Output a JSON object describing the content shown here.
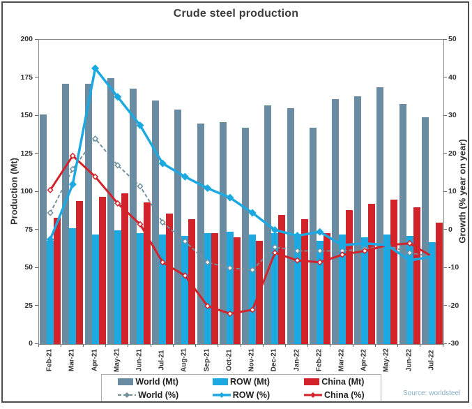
{
  "title": "Crude steel production",
  "source_note": "Source: worldsteel",
  "colors": {
    "world_bar": "#6a8ca2",
    "row_bar": "#1ca9e1",
    "china_bar": "#d2232a",
    "world_line": "#73909e",
    "row_line": "#1ca9e1",
    "china_line": "#d2232a",
    "title_text": "#3c3c3c",
    "axis_text": "#333333",
    "source_text": "#85aec7"
  },
  "chart_data": {
    "type": "bar+line",
    "title": "Crude steel production",
    "grid": false,
    "legend_position": "bottom",
    "categories": [
      "Feb-21",
      "Mar-21",
      "Apr-21",
      "May-21",
      "Jun-21",
      "Jul-21",
      "Aug-21",
      "Sep-21",
      "Oct-21",
      "Nov-21",
      "Dec-21",
      "Jan-22",
      "Feb-22",
      "Mar-22",
      "Apr-22",
      "May-22",
      "Jun-22",
      "Jul-22"
    ],
    "left_axis": {
      "label": "Production (Mt)",
      "min": 0,
      "max": 200,
      "step": 25,
      "ticks": [
        "0",
        "25",
        "50",
        "75",
        "100",
        "125",
        "150",
        "175",
        "200"
      ]
    },
    "right_axis": {
      "label": "Growth (% year on year)",
      "min": -30,
      "max": 50,
      "step": 10,
      "ticks": [
        "-30",
        "-20",
        "-10",
        "0",
        "10",
        "20",
        "30",
        "40",
        "50"
      ]
    },
    "bar_series": [
      {
        "key": "world",
        "name": "World (Mt)",
        "axis": "left",
        "color": "#6a8ca2",
        "values": [
          151,
          171,
          171,
          175,
          168,
          160,
          154,
          145,
          146,
          142,
          157,
          155,
          142,
          161,
          163,
          169,
          158,
          149
        ]
      },
      {
        "key": "row",
        "name": "ROW (Mt)",
        "axis": "left",
        "color": "#1ca9e1",
        "values": [
          68,
          76,
          72,
          75,
          73,
          72,
          71,
          73,
          74,
          72,
          73,
          71,
          68,
          72,
          70,
          72,
          71,
          67
        ]
      },
      {
        "key": "china",
        "name": "China (Mt)",
        "axis": "left",
        "color": "#d2232a",
        "values": [
          83,
          94,
          97,
          99,
          93,
          86,
          82,
          73,
          70,
          68,
          85,
          82,
          73,
          88,
          92,
          95,
          90,
          80
        ]
      }
    ],
    "line_series": [
      {
        "key": "world",
        "name": "World (%)",
        "axis": "right",
        "color": "#73909e",
        "dash": "5,3",
        "stroke_width": 2,
        "marker_fill": "#ffffff",
        "values": [
          4.5,
          16,
          24,
          17,
          11.5,
          2,
          -3,
          -8.5,
          -10,
          -10.5,
          -4.5,
          -5.5,
          -5.5,
          -5.5,
          -5,
          -4,
          -6,
          -7
        ]
      },
      {
        "key": "china",
        "name": "China (%)",
        "axis": "right",
        "color": "#d2232a",
        "dash": "",
        "stroke_width": 3,
        "marker_fill": "#ffffff",
        "values": [
          10.5,
          19.5,
          14,
          7,
          1.5,
          -8.5,
          -12,
          -20,
          -22,
          -21,
          -6,
          -8,
          -8.5,
          -6.5,
          -5.5,
          -4,
          -3.5,
          -7
        ]
      },
      {
        "key": "row",
        "name": "ROW (%)",
        "axis": "right",
        "color": "#1ca9e1",
        "dash": "",
        "stroke_width": 3.5,
        "marker_fill": "#1ca9e1",
        "values": [
          -2.5,
          12,
          42.5,
          35,
          27.5,
          17.5,
          14,
          11,
          8.5,
          4.5,
          0,
          -1.5,
          -0.5,
          -4,
          -3.5,
          -4,
          -8,
          -7
        ]
      }
    ],
    "legend_order": [
      "bar:world",
      "bar:row",
      "bar:china",
      "line:world",
      "line:row",
      "line:china"
    ]
  }
}
